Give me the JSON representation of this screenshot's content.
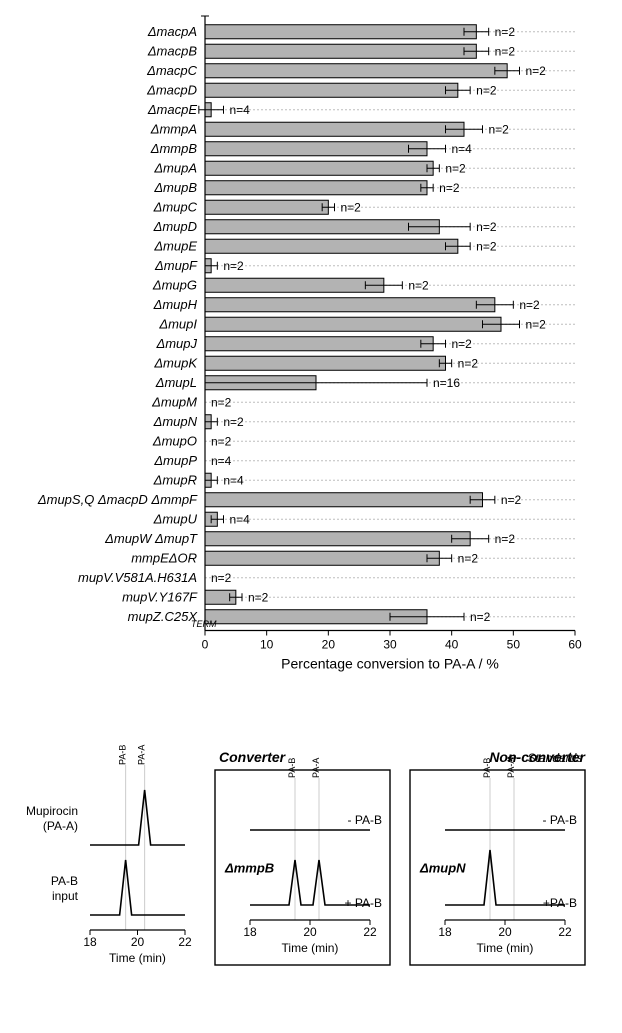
{
  "bar_chart": {
    "type": "bar",
    "xlabel": "Percentage conversion to PA-A / %",
    "xlim": [
      0,
      60
    ],
    "xtick_step": 10,
    "bar_color": "#b3b3b3",
    "bar_border": "#000000",
    "grid_color": "#bdbdbd",
    "background": "#ffffff",
    "label_fontsize": 13,
    "axis_fontsize": 14,
    "tick_fontsize": 12,
    "bars": [
      {
        "label": "ΔmacpA",
        "value": 44,
        "err": 2,
        "n": "n=2"
      },
      {
        "label": "ΔmacpB",
        "value": 44,
        "err": 2,
        "n": "n=2"
      },
      {
        "label": "ΔmacpC",
        "value": 49,
        "err": 2,
        "n": "n=2"
      },
      {
        "label": "ΔmacpD",
        "value": 41,
        "err": 2,
        "n": "n=2"
      },
      {
        "label": "ΔmacpE",
        "value": 1,
        "err": 2,
        "n": "n=4"
      },
      {
        "label": "ΔmmpA",
        "value": 42,
        "err": 3,
        "n": "n=2"
      },
      {
        "label": "ΔmmpB",
        "value": 36,
        "err": 3,
        "n": "n=4"
      },
      {
        "label": "ΔmupA",
        "value": 37,
        "err": 1,
        "n": "n=2"
      },
      {
        "label": "ΔmupB",
        "value": 36,
        "err": 1,
        "n": "n=2"
      },
      {
        "label": "ΔmupC",
        "value": 20,
        "err": 1,
        "n": "n=2"
      },
      {
        "label": "ΔmupD",
        "value": 38,
        "err": 5,
        "n": "n=2"
      },
      {
        "label": "ΔmupE",
        "value": 41,
        "err": 2,
        "n": "n=2"
      },
      {
        "label": "ΔmupF",
        "value": 1,
        "err": 1,
        "n": "n=2"
      },
      {
        "label": "ΔmupG",
        "value": 29,
        "err": 3,
        "n": "n=2"
      },
      {
        "label": "ΔmupH",
        "value": 47,
        "err": 3,
        "n": "n=2"
      },
      {
        "label": "ΔmupI",
        "value": 48,
        "err": 3,
        "n": "n=2"
      },
      {
        "label": "ΔmupJ",
        "value": 37,
        "err": 2,
        "n": "n=2"
      },
      {
        "label": "ΔmupK",
        "value": 39,
        "err": 1,
        "n": "n=2"
      },
      {
        "label": "ΔmupL",
        "value": 18,
        "err": 18,
        "n": "n=16"
      },
      {
        "label": "ΔmupM",
        "value": 0,
        "err": 0,
        "n": "n=2"
      },
      {
        "label": "ΔmupN",
        "value": 1,
        "err": 1,
        "n": "n=2"
      },
      {
        "label": "ΔmupO",
        "value": 0,
        "err": 0,
        "n": "n=2"
      },
      {
        "label": "ΔmupP",
        "value": 0,
        "err": 0,
        "n": "n=4"
      },
      {
        "label": "ΔmupR",
        "value": 1,
        "err": 1,
        "n": "n=4"
      },
      {
        "label": "ΔmupS,Q ΔmacpD ΔmmpF",
        "value": 45,
        "err": 2,
        "n": "n=2"
      },
      {
        "label": "ΔmupU",
        "value": 2,
        "err": 1,
        "n": "n=4"
      },
      {
        "label": "ΔmupW ΔmupT",
        "value": 43,
        "err": 3,
        "n": "n=2"
      },
      {
        "label": "mmpEΔOR",
        "value": 38,
        "err": 2,
        "n": "n=2"
      },
      {
        "label": "mupV.V581A.H631A",
        "value": 0,
        "err": 0,
        "n": "n=2"
      },
      {
        "label": "mupV.Y167F",
        "value": 5,
        "err": 1,
        "n": "n=2"
      },
      {
        "label": "mupZ.C25X",
        "sub": "TERM",
        "value": 36,
        "err": 6,
        "n": "n=2"
      }
    ]
  },
  "chrom": {
    "time_label": "Time (min)",
    "ticks": [
      18,
      20,
      22
    ],
    "peak_labels": [
      "PA-B",
      "PA-A"
    ],
    "line_color": "#000000",
    "grid_color": "#cccccc",
    "left": {
      "top_label": "Mupirocin",
      "top_sub": "(PA-A)",
      "bottom_label": "PA-B",
      "bottom_sub": "input"
    },
    "panels": [
      {
        "title": "Converter",
        "gene": "ΔmmpB",
        "top_tag": "- PA-B",
        "bottom_tag": "+ PA-B",
        "title_pos": "left"
      },
      {
        "title": "Non-converter",
        "gene": "ΔmupN",
        "top_tag": "- PA-B",
        "bottom_tag": "+PA-B",
        "title_pos": "right"
      }
    ],
    "standards_label": "Standards"
  }
}
